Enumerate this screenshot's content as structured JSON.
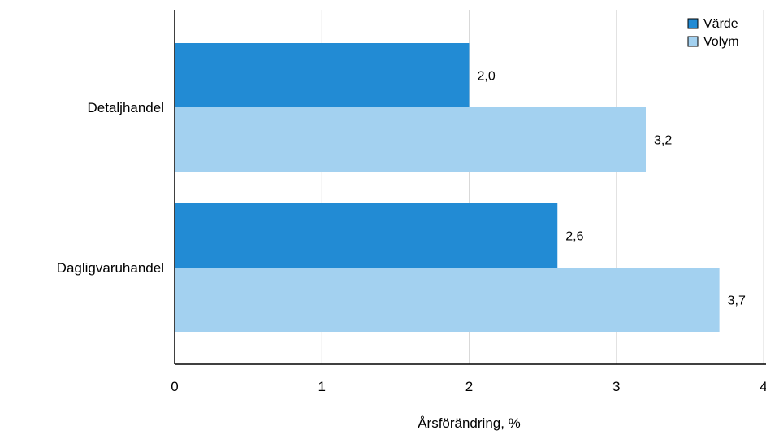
{
  "chart_data": {
    "type": "bar",
    "orientation": "horizontal",
    "categories": [
      "Detaljhandel",
      "Dagligvaruhandel"
    ],
    "series": [
      {
        "name": "Värde",
        "values": [
          2.0,
          2.6
        ],
        "labels": [
          "2,0",
          "2,6"
        ],
        "color": "#228BD4"
      },
      {
        "name": "Volym",
        "values": [
          3.2,
          3.7
        ],
        "labels": [
          "3,2",
          "3,7"
        ],
        "color": "#A3D1F0"
      }
    ],
    "title": "",
    "xlabel": "Årsförändring, %",
    "ylabel": "",
    "xlim": [
      0,
      4
    ],
    "xticks": [
      0,
      1,
      2,
      3,
      4
    ],
    "xtick_labels": [
      "0",
      "1",
      "2",
      "3",
      "4"
    ],
    "grid": "vertical",
    "legend_position": "top-right"
  }
}
